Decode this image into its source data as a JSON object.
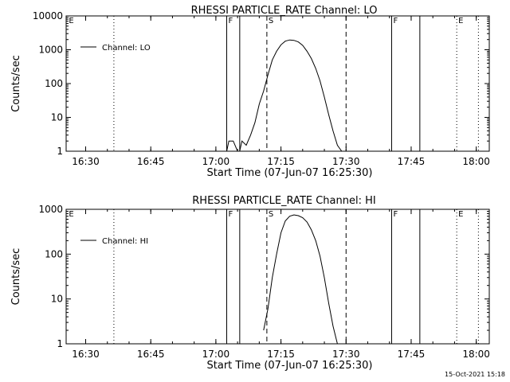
{
  "footer": {
    "timestamp": "15-Oct-2021 15:18"
  },
  "chart_data": [
    {
      "type": "line",
      "title": "RHESSI PARTICLE_RATE Channel: LO",
      "xlabel": "Start Time (07-Jun-07 16:25:30)",
      "ylabel": "Counts/sec",
      "xlim": [
        "16:25:30",
        "18:03"
      ],
      "ylim": [
        1,
        10000
      ],
      "yscale": "log",
      "x_ticks": [
        "16:30",
        "16:45",
        "17:00",
        "17:15",
        "17:30",
        "17:45",
        "18:00"
      ],
      "y_ticks": [
        "1",
        "10",
        "100",
        "1000",
        "10000"
      ],
      "legend": {
        "placement": "top-left",
        "entries": [
          "Channel: LO"
        ]
      },
      "markers": [
        {
          "type": "flag",
          "label": "E",
          "time": "16:25:45",
          "style": "none"
        },
        {
          "type": "night-boundary",
          "label": "",
          "time": "16:36:30",
          "style": "dotted"
        },
        {
          "type": "flag",
          "label": "F",
          "time": "17:02:30",
          "style": "solid"
        },
        {
          "type": "flag",
          "label": "",
          "time": "17:05:30",
          "style": "solid"
        },
        {
          "type": "flag",
          "label": "S",
          "time": "17:11:45",
          "style": "dashed"
        },
        {
          "type": "flag",
          "label": "",
          "time": "17:30:00",
          "style": "dashed"
        },
        {
          "type": "flag",
          "label": "F",
          "time": "17:40:30",
          "style": "solid"
        },
        {
          "type": "flag",
          "label": "",
          "time": "17:47:00",
          "style": "solid"
        },
        {
          "type": "flag",
          "label": "E",
          "time": "17:55:30",
          "style": "dotted"
        },
        {
          "type": "night-boundary",
          "label": "",
          "time": "18:00:30",
          "style": "dotted"
        }
      ],
      "series": [
        {
          "name": "Channel: LO",
          "x": [
            "17:02:30",
            "17:03:00",
            "17:03:30",
            "17:04:00",
            "17:05:00",
            "17:05:30",
            "17:06:00",
            "17:07:00",
            "17:08:00",
            "17:09:00",
            "17:10:00",
            "17:11:00",
            "17:12:00",
            "17:13:00",
            "17:14:00",
            "17:15:00",
            "17:16:00",
            "17:17:00",
            "17:18:00",
            "17:19:00",
            "17:20:00",
            "17:21:00",
            "17:22:00",
            "17:23:00",
            "17:24:00",
            "17:25:00",
            "17:26:00",
            "17:27:00",
            "17:28:00",
            "17:29:00"
          ],
          "y": [
            1,
            2,
            2,
            2,
            1,
            1,
            2,
            1.5,
            3,
            7,
            25,
            60,
            180,
            500,
            900,
            1400,
            1800,
            1950,
            1900,
            1700,
            1350,
            900,
            550,
            280,
            120,
            40,
            12,
            4,
            1.5,
            1
          ]
        }
      ]
    },
    {
      "type": "line",
      "title": "RHESSI PARTICLE_RATE Channel: HI",
      "xlabel": "Start Time (07-Jun-07 16:25:30)",
      "ylabel": "Counts/sec",
      "xlim": [
        "16:25:30",
        "18:03"
      ],
      "ylim": [
        1,
        1000
      ],
      "yscale": "log",
      "x_ticks": [
        "16:30",
        "16:45",
        "17:00",
        "17:15",
        "17:30",
        "17:45",
        "18:00"
      ],
      "y_ticks": [
        "1",
        "10",
        "100",
        "1000"
      ],
      "legend": {
        "placement": "top-left",
        "entries": [
          "Channel: HI"
        ]
      },
      "markers": [
        {
          "type": "flag",
          "label": "E",
          "time": "16:25:45",
          "style": "none"
        },
        {
          "type": "night-boundary",
          "label": "",
          "time": "16:36:30",
          "style": "dotted"
        },
        {
          "type": "flag",
          "label": "F",
          "time": "17:02:30",
          "style": "solid"
        },
        {
          "type": "flag",
          "label": "",
          "time": "17:05:30",
          "style": "solid"
        },
        {
          "type": "flag",
          "label": "S",
          "time": "17:11:45",
          "style": "dashed"
        },
        {
          "type": "flag",
          "label": "",
          "time": "17:30:00",
          "style": "dashed"
        },
        {
          "type": "flag",
          "label": "F",
          "time": "17:40:30",
          "style": "solid"
        },
        {
          "type": "flag",
          "label": "",
          "time": "17:47:00",
          "style": "solid"
        },
        {
          "type": "flag",
          "label": "E",
          "time": "17:55:30",
          "style": "dotted"
        },
        {
          "type": "night-boundary",
          "label": "",
          "time": "18:00:30",
          "style": "dotted"
        }
      ],
      "series": [
        {
          "name": "Channel: HI",
          "x": [
            "17:11:00",
            "17:12:00",
            "17:13:00",
            "17:14:00",
            "17:15:00",
            "17:16:00",
            "17:17:00",
            "17:18:00",
            "17:19:00",
            "17:20:00",
            "17:21:00",
            "17:22:00",
            "17:23:00",
            "17:24:00",
            "17:25:00",
            "17:26:00",
            "17:27:00",
            "17:28:00"
          ],
          "y": [
            2,
            6,
            30,
            100,
            300,
            550,
            700,
            750,
            720,
            650,
            520,
            350,
            200,
            90,
            30,
            8,
            2.5,
            1
          ]
        }
      ]
    }
  ]
}
